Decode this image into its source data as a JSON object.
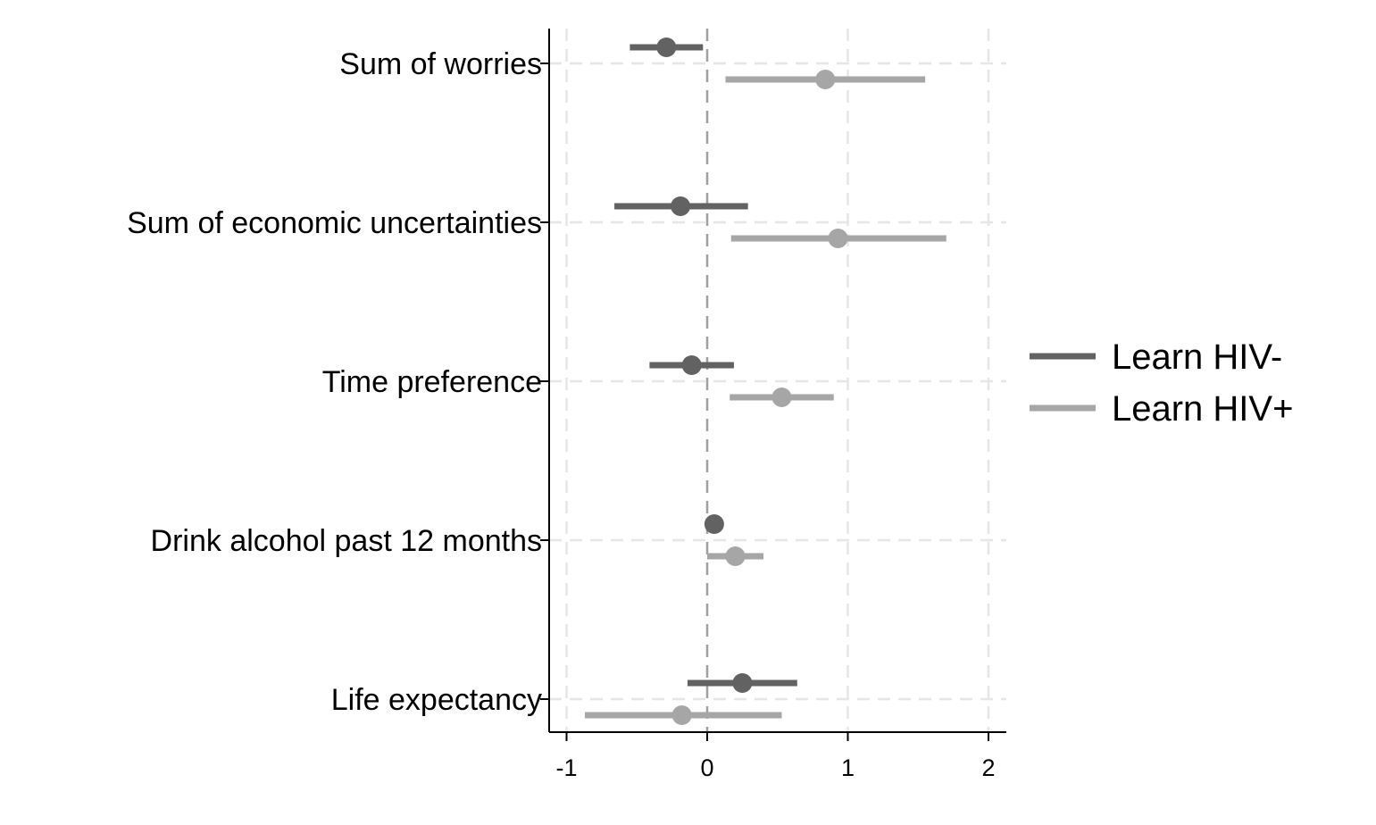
{
  "chart_data": {
    "type": "scatter",
    "subtype": "coefficient-plot-with-confidence-intervals",
    "title": "",
    "xlabel": "",
    "ylabel": "",
    "categories": [
      "Sum of worries",
      "Sum of economic uncertainties",
      "Time preference",
      "Drink alcohol past 12 months",
      "Life expectancy"
    ],
    "xlim": [
      -1.12,
      2.12
    ],
    "xticks": [
      -1,
      0,
      1,
      2
    ],
    "xtick_labels": [
      "-1",
      "0",
      "1",
      "2"
    ],
    "reference_line": 0,
    "grid": true,
    "legend_position": "right",
    "series": [
      {
        "name": "Learn HIV-",
        "color": "#626262",
        "estimates": [
          -0.29,
          -0.19,
          -0.11,
          0.05,
          0.25
        ],
        "ci_low": [
          -0.55,
          -0.66,
          -0.41,
          0.0,
          -0.14
        ],
        "ci_high": [
          -0.03,
          0.29,
          0.19,
          0.09,
          0.64
        ]
      },
      {
        "name": "Learn HIV+",
        "color": "#a6a6a6",
        "estimates": [
          0.84,
          0.93,
          0.53,
          0.2,
          -0.18
        ],
        "ci_low": [
          0.13,
          0.17,
          0.16,
          0.0,
          -0.87
        ],
        "ci_high": [
          1.55,
          1.7,
          0.9,
          0.4,
          0.53
        ]
      }
    ]
  }
}
